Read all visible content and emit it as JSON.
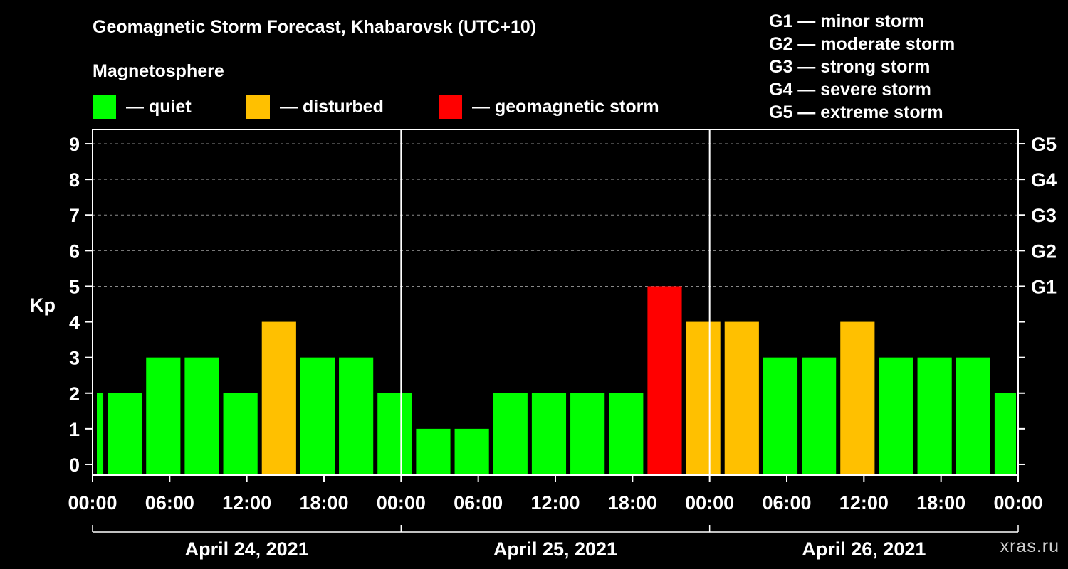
{
  "title": "Geomagnetic Storm Forecast, Khabarovsk (UTC+10)",
  "legend": {
    "heading": "Magnetosphere",
    "items": [
      {
        "label": "— quiet",
        "color": "#00ff00"
      },
      {
        "label": "— disturbed",
        "color": "#ffc000"
      },
      {
        "label": "— geomagnetic storm",
        "color": "#ff0000"
      }
    ]
  },
  "storm_levels": [
    "G1 — minor storm",
    "G2 — moderate storm",
    "G3 — strong storm",
    "G4 — severe storm",
    "G5 — extreme storm"
  ],
  "watermark": "xras.ru",
  "chart_data": {
    "type": "bar",
    "title": "Geomagnetic Storm Forecast, Khabarovsk (UTC+10)",
    "ylabel": "Kp",
    "ylim": [
      -0.3,
      9.4
    ],
    "yticks": [
      "0",
      "1",
      "2",
      "3",
      "4",
      "5",
      "6",
      "7",
      "8",
      "9"
    ],
    "right_ticks": [
      {
        "kp": 5,
        "label": "G1"
      },
      {
        "kp": 6,
        "label": "G2"
      },
      {
        "kp": 7,
        "label": "G3"
      },
      {
        "kp": 8,
        "label": "G4"
      },
      {
        "kp": 9,
        "label": "G5"
      }
    ],
    "xlim_hours": [
      0,
      72
    ],
    "x_tick_labels": [
      "00:00",
      "06:00",
      "12:00",
      "18:00",
      "00:00",
      "06:00",
      "12:00",
      "18:00",
      "00:00",
      "06:00",
      "12:00",
      "18:00",
      "00:00"
    ],
    "x_tick_hours": [
      0,
      6,
      12,
      18,
      24,
      30,
      36,
      42,
      48,
      54,
      60,
      66,
      72
    ],
    "day_boundaries_hours": [
      24,
      48
    ],
    "dates": [
      "April 24, 2021",
      "April 25, 2021",
      "April 26, 2021"
    ],
    "bars": [
      {
        "start_hour": 0,
        "end_hour": 1,
        "kp": 2,
        "status": "quiet"
      },
      {
        "start_hour": 1,
        "end_hour": 4,
        "kp": 2,
        "status": "quiet"
      },
      {
        "start_hour": 4,
        "end_hour": 7,
        "kp": 3,
        "status": "quiet"
      },
      {
        "start_hour": 7,
        "end_hour": 10,
        "kp": 3,
        "status": "quiet"
      },
      {
        "start_hour": 10,
        "end_hour": 13,
        "kp": 2,
        "status": "quiet"
      },
      {
        "start_hour": 13,
        "end_hour": 16,
        "kp": 4,
        "status": "disturbed"
      },
      {
        "start_hour": 16,
        "end_hour": 19,
        "kp": 3,
        "status": "quiet"
      },
      {
        "start_hour": 19,
        "end_hour": 22,
        "kp": 3,
        "status": "quiet"
      },
      {
        "start_hour": 22,
        "end_hour": 25,
        "kp": 2,
        "status": "quiet"
      },
      {
        "start_hour": 25,
        "end_hour": 28,
        "kp": 1,
        "status": "quiet"
      },
      {
        "start_hour": 28,
        "end_hour": 31,
        "kp": 1,
        "status": "quiet"
      },
      {
        "start_hour": 31,
        "end_hour": 34,
        "kp": 2,
        "status": "quiet"
      },
      {
        "start_hour": 34,
        "end_hour": 37,
        "kp": 2,
        "status": "quiet"
      },
      {
        "start_hour": 37,
        "end_hour": 40,
        "kp": 2,
        "status": "quiet"
      },
      {
        "start_hour": 40,
        "end_hour": 43,
        "kp": 2,
        "status": "quiet"
      },
      {
        "start_hour": 43,
        "end_hour": 46,
        "kp": 5,
        "status": "storm"
      },
      {
        "start_hour": 46,
        "end_hour": 49,
        "kp": 4,
        "status": "disturbed"
      },
      {
        "start_hour": 49,
        "end_hour": 52,
        "kp": 4,
        "status": "disturbed"
      },
      {
        "start_hour": 52,
        "end_hour": 55,
        "kp": 3,
        "status": "quiet"
      },
      {
        "start_hour": 55,
        "end_hour": 58,
        "kp": 3,
        "status": "quiet"
      },
      {
        "start_hour": 58,
        "end_hour": 61,
        "kp": 4,
        "status": "disturbed"
      },
      {
        "start_hour": 61,
        "end_hour": 64,
        "kp": 3,
        "status": "quiet"
      },
      {
        "start_hour": 64,
        "end_hour": 67,
        "kp": 3,
        "status": "quiet"
      },
      {
        "start_hour": 67,
        "end_hour": 70,
        "kp": 3,
        "status": "quiet"
      },
      {
        "start_hour": 70,
        "end_hour": 72,
        "kp": 2,
        "status": "quiet"
      }
    ],
    "status_colors": {
      "quiet": "#00ff00",
      "disturbed": "#ffc000",
      "storm": "#ff0000"
    },
    "grid": "dashed horizontal at Kp 6-9"
  }
}
